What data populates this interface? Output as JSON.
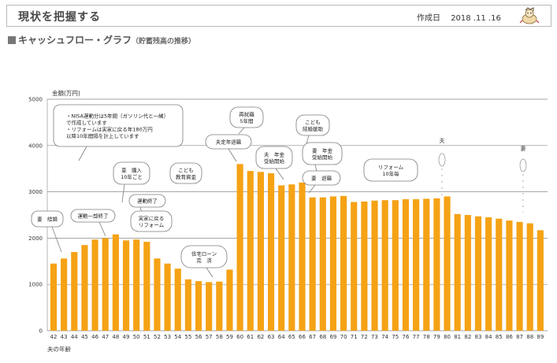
{
  "header": {
    "title": "現状を把握する",
    "created_label": "作成日",
    "created_date": "2018 .11 .16"
  },
  "section": {
    "title": "キャッシュフロー・グラフ",
    "subtitle": "（貯蓄残高の推移）"
  },
  "colors": {
    "bar": "#f5a215",
    "grid": "#888888",
    "frame": "#b9b9b9"
  },
  "chart_data": {
    "type": "bar",
    "ylabel": "金額(万円)",
    "xlabel": "夫の年齢",
    "ylim": [
      0,
      5000
    ],
    "yticks": [
      "0",
      "1000",
      "2000",
      "3000",
      "4000",
      "5000"
    ],
    "grid": true,
    "categories": [
      "42",
      "43",
      "44",
      "45",
      "46",
      "47",
      "48",
      "49",
      "50",
      "51",
      "52",
      "53",
      "54",
      "55",
      "56",
      "57",
      "58",
      "59",
      "60",
      "61",
      "62",
      "63",
      "64",
      "65",
      "66",
      "67",
      "68",
      "69",
      "70",
      "71",
      "72",
      "73",
      "74",
      "75",
      "76",
      "77",
      "78",
      "79",
      "80",
      "81",
      "82",
      "83",
      "84",
      "85",
      "86",
      "87",
      "88",
      "89"
    ],
    "values": [
      1450,
      1560,
      1700,
      1850,
      1970,
      2000,
      2080,
      1950,
      1970,
      1920,
      1560,
      1450,
      1340,
      1110,
      1070,
      1050,
      1060,
      1320,
      3600,
      3450,
      3430,
      3400,
      3140,
      3160,
      3200,
      2880,
      2880,
      2900,
      2910,
      2780,
      2790,
      2810,
      2820,
      2820,
      2840,
      2840,
      2850,
      2860,
      2900,
      2520,
      2500,
      2470,
      2450,
      2420,
      2380,
      2350,
      2320,
      2170
    ],
    "annotations": [
      {
        "lines": [
          "・NISA運動分は5年間（ガソリン代と一緒）",
          "で作成しています",
          "・リフォームは実家に戻る年180万円",
          "以降10年間隔を計上しています"
        ]
      },
      {
        "lines": [
          "妻　結婚"
        ]
      },
      {
        "lines": [
          "運動一部終了"
        ]
      },
      {
        "lines": [
          "車　購入",
          "10年ごと"
        ]
      },
      {
        "lines": [
          "こども",
          "教育資金"
        ]
      },
      {
        "lines": [
          "運動終了"
        ]
      },
      {
        "lines": [
          "実家に戻る",
          "リフォーム"
        ]
      },
      {
        "lines": [
          "住宅ローン",
          "完　済"
        ]
      },
      {
        "lines": [
          "再就職",
          "5年間"
        ]
      },
      {
        "lines": [
          "夫定年退職"
        ]
      },
      {
        "lines": [
          "こども",
          "結婚援助"
        ]
      },
      {
        "lines": [
          "夫　年金",
          "受給開始"
        ]
      },
      {
        "lines": [
          "妻　年金",
          "受給開始"
        ]
      },
      {
        "lines": [
          "妻　退職"
        ]
      },
      {
        "lines": [
          "リフォーム",
          "10年毎"
        ]
      },
      {
        "lines": [
          "夫"
        ]
      },
      {
        "lines": [
          "妻"
        ]
      }
    ]
  }
}
